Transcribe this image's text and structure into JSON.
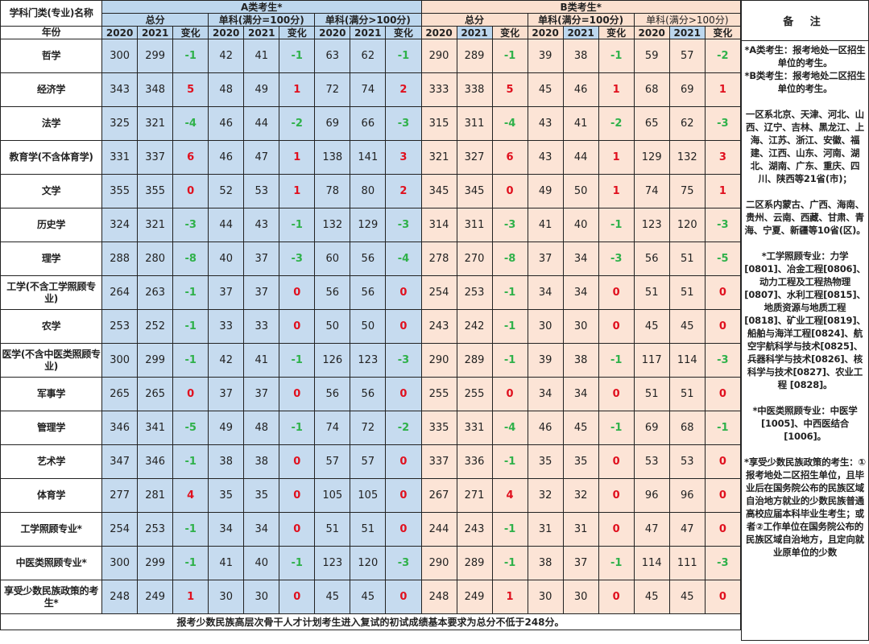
{
  "header": {
    "name_col": "学科门类(专业)名称",
    "year_col": "年份",
    "group_a": "A类考生*",
    "group_b": "B类考生*",
    "total": "总分",
    "single100": "单科(满分=100分)",
    "singleOver": "单科(满分>100分)",
    "y2020": "2020",
    "y2021": "2021",
    "change": "变化",
    "notes_title": "备 注"
  },
  "rows": [
    {
      "name": "哲学",
      "a": [
        "300",
        "299",
        "-1",
        "42",
        "41",
        "-1",
        "63",
        "62",
        "-1"
      ],
      "b": [
        "290",
        "289",
        "-1",
        "39",
        "38",
        "-1",
        "59",
        "57",
        "-2"
      ]
    },
    {
      "name": "经济学",
      "a": [
        "343",
        "348",
        "5",
        "48",
        "49",
        "1",
        "72",
        "74",
        "2"
      ],
      "b": [
        "333",
        "338",
        "5",
        "45",
        "46",
        "1",
        "68",
        "69",
        "1"
      ]
    },
    {
      "name": "法学",
      "a": [
        "325",
        "321",
        "-4",
        "46",
        "44",
        "-2",
        "69",
        "66",
        "-3"
      ],
      "b": [
        "315",
        "311",
        "-4",
        "43",
        "41",
        "-2",
        "65",
        "62",
        "-3"
      ]
    },
    {
      "name": "教育学(不含体育学)",
      "a": [
        "331",
        "337",
        "6",
        "46",
        "47",
        "1",
        "138",
        "141",
        "3"
      ],
      "b": [
        "321",
        "327",
        "6",
        "43",
        "44",
        "1",
        "129",
        "132",
        "3"
      ]
    },
    {
      "name": "文学",
      "a": [
        "355",
        "355",
        "0",
        "52",
        "53",
        "1",
        "78",
        "80",
        "2"
      ],
      "b": [
        "345",
        "345",
        "0",
        "49",
        "50",
        "1",
        "74",
        "75",
        "1"
      ]
    },
    {
      "name": "历史学",
      "a": [
        "324",
        "321",
        "-3",
        "44",
        "43",
        "-1",
        "132",
        "129",
        "-3"
      ],
      "b": [
        "314",
        "311",
        "-3",
        "41",
        "40",
        "-1",
        "123",
        "120",
        "-3"
      ]
    },
    {
      "name": "理学",
      "a": [
        "288",
        "280",
        "-8",
        "40",
        "37",
        "-3",
        "60",
        "56",
        "-4"
      ],
      "b": [
        "278",
        "270",
        "-8",
        "37",
        "34",
        "-3",
        "56",
        "51",
        "-5"
      ]
    },
    {
      "name": "工学(不含工学照顾专业)",
      "a": [
        "264",
        "263",
        "-1",
        "37",
        "37",
        "0",
        "56",
        "56",
        "0"
      ],
      "b": [
        "254",
        "253",
        "-1",
        "34",
        "34",
        "0",
        "51",
        "51",
        "0"
      ]
    },
    {
      "name": "农学",
      "a": [
        "253",
        "252",
        "-1",
        "33",
        "33",
        "0",
        "50",
        "50",
        "0"
      ],
      "b": [
        "243",
        "242",
        "-1",
        "30",
        "30",
        "0",
        "45",
        "45",
        "0"
      ]
    },
    {
      "name": "医学(不含中医类照顾专业)",
      "a": [
        "300",
        "299",
        "-1",
        "42",
        "41",
        "-1",
        "126",
        "123",
        "-3"
      ],
      "b": [
        "290",
        "289",
        "-1",
        "39",
        "38",
        "-1",
        "117",
        "114",
        "-3"
      ]
    },
    {
      "name": "军事学",
      "a": [
        "265",
        "265",
        "0",
        "37",
        "37",
        "0",
        "56",
        "56",
        "0"
      ],
      "b": [
        "255",
        "255",
        "0",
        "34",
        "34",
        "0",
        "51",
        "51",
        "0"
      ]
    },
    {
      "name": "管理学",
      "a": [
        "346",
        "341",
        "-5",
        "49",
        "48",
        "-1",
        "74",
        "72",
        "-2"
      ],
      "b": [
        "335",
        "331",
        "-4",
        "46",
        "45",
        "-1",
        "69",
        "68",
        "-1"
      ]
    },
    {
      "name": "艺术学",
      "a": [
        "347",
        "346",
        "-1",
        "38",
        "38",
        "0",
        "57",
        "57",
        "0"
      ],
      "b": [
        "337",
        "336",
        "-1",
        "35",
        "35",
        "0",
        "53",
        "53",
        "0"
      ]
    },
    {
      "name": "体育学",
      "a": [
        "277",
        "281",
        "4",
        "35",
        "35",
        "0",
        "105",
        "105",
        "0"
      ],
      "b": [
        "267",
        "271",
        "4",
        "32",
        "32",
        "0",
        "96",
        "96",
        "0"
      ]
    },
    {
      "name": "工学照顾专业*",
      "a": [
        "254",
        "253",
        "-1",
        "34",
        "34",
        "0",
        "51",
        "51",
        "0"
      ],
      "b": [
        "244",
        "243",
        "-1",
        "31",
        "31",
        "0",
        "47",
        "47",
        "0"
      ]
    },
    {
      "name": "中医类照顾专业*",
      "a": [
        "300",
        "299",
        "-1",
        "41",
        "40",
        "-1",
        "123",
        "120",
        "-3"
      ],
      "b": [
        "290",
        "289",
        "-1",
        "38",
        "37",
        "-1",
        "114",
        "111",
        "-3"
      ]
    },
    {
      "name": "享受少数民族政策的考生*",
      "a": [
        "248",
        "249",
        "1",
        "30",
        "30",
        "0",
        "45",
        "45",
        "0"
      ],
      "b": [
        "248",
        "249",
        "1",
        "30",
        "30",
        "0",
        "45",
        "45",
        "0"
      ]
    }
  ],
  "footer": "报考少数民族高层次骨干人才计划考生进入复试的初试成绩基本要求为总分不低于248分。",
  "notes": "*A类考生：报考地处一区招生单位的考生。\n*B类考生：报考地处二区招生单位的考生。\n\n一区系北京、天津、河北、山西、辽宁、吉林、黑龙江、上海、江苏、浙江、安徽、福建、江西、山东、河南、湖北、湖南、广东、重庆、四川、陕西等21省(市)；\n\n二区系内蒙古、广西、海南、贵州、云南、西藏、甘肃、青海、宁夏、新疆等10省(区)。\n\n*工学照顾专业：力学[0801]、冶金工程[0806]、动力工程及工程热物理[0807]、水利工程[0815]、地质资源与地质工程[0818]、矿业工程[0819]、船舶与海洋工程[0824]、航空宇航科学与技术[0825]、兵器科学与技术[0826]、核科学与技术[0827]、农业工程 [0828]。\n\n*中医类照顾专业：中医学[1005]、中西医结合[1006]。\n\n*享受少数民族政策的考生：①报考地处二区招生单位，且毕业后在国务院公布的民族区域自治地方就业的少数民族普通高校应届本科毕业生考生；或者②工作单位在国务院公布的民族区域自治地方，且定向就业原单位的少数",
  "colors": {
    "group_a": "#c6dbef",
    "group_b": "#fce4d6",
    "increase": "#e0101e",
    "decrease": "#2fb14a"
  }
}
